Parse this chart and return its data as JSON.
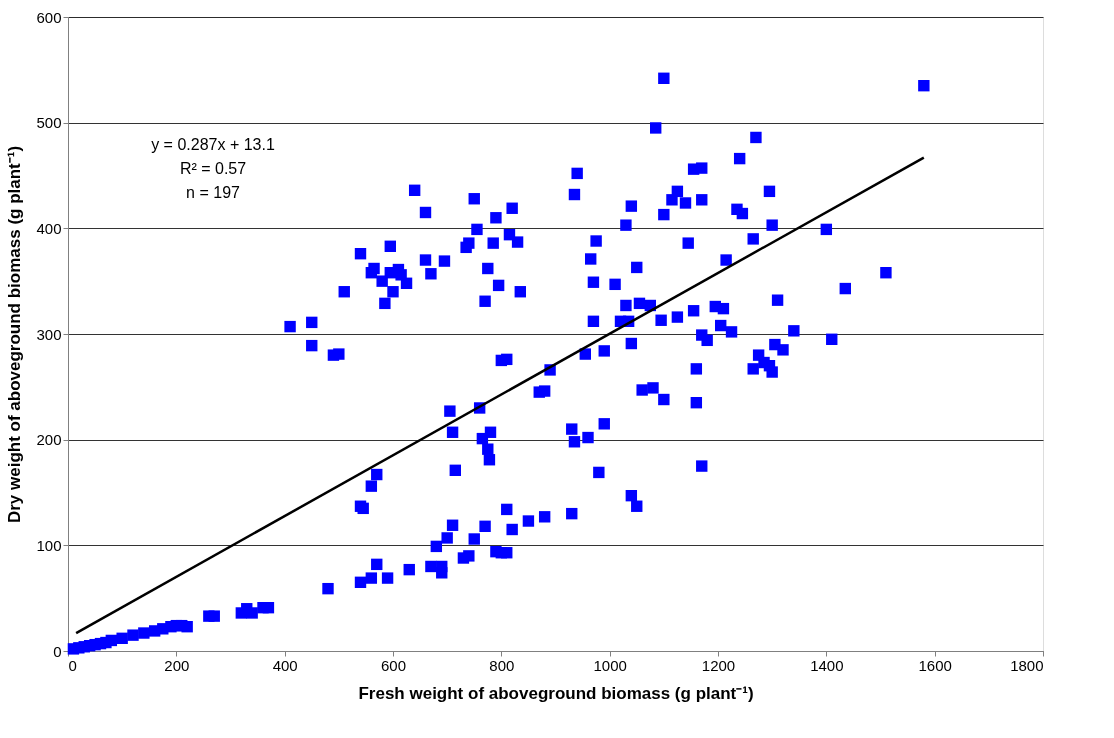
{
  "chart_data": {
    "type": "scatter",
    "xlabel": "Fresh weight of aboveground biomass (g plant⁻¹)",
    "ylabel": "Dry weight of aboveground biomass (g plant⁻¹)",
    "annotations": [
      "y = 0.287x + 13.1",
      "R² = 0.57",
      "n = 197"
    ],
    "xlim": [
      0,
      1800
    ],
    "xticks": [
      0,
      200,
      400,
      600,
      800,
      1000,
      1200,
      1400,
      1600,
      1800
    ],
    "ylim": [
      0,
      600
    ],
    "yticks": [
      0,
      100,
      200,
      300,
      400,
      500,
      600
    ],
    "grid": "y",
    "marker": "square",
    "series": [
      {
        "color": "#0000ff",
        "x": [
          10,
          20,
          30,
          40,
          50,
          60,
          70,
          80,
          100,
          120,
          140,
          160,
          175,
          190,
          200,
          210,
          220,
          260,
          270,
          320,
          330,
          340,
          360,
          370,
          480,
          540,
          560,
          570,
          590,
          630,
          670,
          680,
          690,
          690,
          700,
          710,
          730,
          740,
          750,
          770,
          790,
          800,
          810,
          810,
          820,
          850,
          880,
          930,
          1040,
          1050,
          1170,
          410,
          450,
          450,
          490,
          500,
          510,
          540,
          540,
          545,
          560,
          565,
          560,
          570,
          580,
          585,
          595,
          595,
          600,
          610,
          615,
          625,
          640,
          660,
          660,
          670,
          695,
          705,
          710,
          715,
          735,
          740,
          750,
          755,
          760,
          765,
          770,
          775,
          775,
          778,
          780,
          785,
          790,
          795,
          800,
          810,
          815,
          820,
          830,
          835,
          870,
          880,
          890,
          930,
          935,
          935,
          940,
          955,
          960,
          965,
          970,
          970,
          975,
          980,
          990,
          990,
          1010,
          1020,
          1030,
          1030,
          1035,
          1040,
          1040,
          1050,
          1055,
          1060,
          1075,
          1080,
          1085,
          1095,
          1100,
          1100,
          1100,
          1115,
          1125,
          1125,
          1140,
          1145,
          1155,
          1155,
          1160,
          1160,
          1170,
          1170,
          1170,
          1180,
          1195,
          1205,
          1210,
          1215,
          1225,
          1235,
          1240,
          1245,
          1265,
          1265,
          1270,
          1275,
          1285,
          1295,
          1295,
          1300,
          1300,
          1305,
          1310,
          1320,
          1340,
          1400,
          1410,
          1435,
          1510,
          1580
        ],
        "values": [
          2,
          3,
          4,
          5,
          6,
          7,
          8,
          10,
          12,
          15,
          17,
          19,
          21,
          23,
          24,
          24,
          23,
          33,
          33,
          36,
          40,
          36,
          41,
          41,
          59,
          65,
          69,
          82,
          69,
          77,
          80,
          99,
          80,
          74,
          107,
          119,
          88,
          90,
          106,
          118,
          94,
          93,
          93,
          134,
          115,
          123,
          127,
          130,
          147,
          137,
          175,
          307,
          289,
          311,
          280,
          281,
          340,
          376,
          137,
          135,
          358,
          362,
          156,
          167,
          350,
          329,
          383,
          358,
          340,
          361,
          356,
          348,
          436,
          415,
          370,
          357,
          369,
          227,
          207,
          171,
          382,
          386,
          428,
          399,
          230,
          201,
          331,
          362,
          191,
          181,
          207,
          386,
          410,
          346,
          275,
          276,
          394,
          419,
          387,
          340,
          245,
          246,
          266,
          210,
          198,
          432,
          452,
          281,
          202,
          371,
          349,
          312,
          388,
          169,
          215,
          284,
          347,
          312,
          403,
          327,
          312,
          291,
          421,
          363,
          329,
          247,
          327,
          249,
          495,
          313,
          238,
          413,
          542,
          427,
          435,
          316,
          424,
          386,
          322,
          456,
          267,
          235,
          457,
          427,
          299,
          294,
          326,
          308,
          324,
          370,
          302,
          418,
          466,
          414,
          390,
          267,
          486,
          280,
          273,
          270,
          435,
          264,
          403,
          290,
          332,
          285,
          303,
          399,
          295,
          343,
          358,
          535
        ]
      },
      {
        "type": "line",
        "marker": "none",
        "color": "#000000",
        "x": [
          15,
          1580
        ],
        "values": [
          17,
          467
        ]
      }
    ]
  }
}
